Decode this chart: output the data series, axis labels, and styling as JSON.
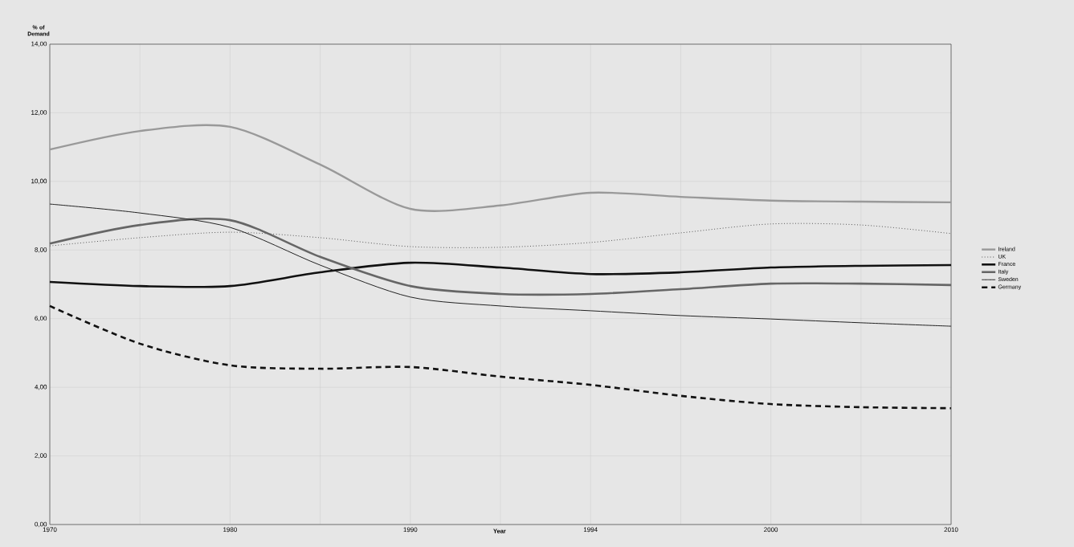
{
  "chart_data": {
    "type": "line",
    "xlabel": "Year",
    "ylabel": "% of Demand",
    "categories": [
      "1970",
      null,
      "1980",
      null,
      "1990",
      null,
      "1994",
      null,
      "2000",
      null,
      "2010"
    ],
    "ylim": [
      0,
      14
    ],
    "yticks": [
      {
        "value": 0,
        "label": "0,00"
      },
      {
        "value": 2,
        "label": "2,00"
      },
      {
        "value": 4,
        "label": "4,00"
      },
      {
        "value": 6,
        "label": "6,00"
      },
      {
        "value": 8,
        "label": "8,00"
      },
      {
        "value": 10,
        "label": "10,00"
      },
      {
        "value": 12,
        "label": "12,00"
      },
      {
        "value": 14,
        "label": "14,00"
      }
    ],
    "grid": true,
    "legend": "right",
    "series": [
      {
        "name": "Ireland",
        "color": "#999999",
        "line_style": "solid",
        "values": [
          10.93,
          11.47,
          11.59,
          10.49,
          9.2,
          9.3,
          9.67,
          9.55,
          9.44,
          9.41,
          9.39
        ]
      },
      {
        "name": "UK",
        "color": "#555555",
        "line_style": "dotted",
        "values": [
          8.12,
          8.36,
          8.52,
          8.36,
          8.1,
          8.08,
          8.22,
          8.5,
          8.76,
          8.73,
          8.48
        ]
      },
      {
        "name": "France",
        "color": "#111111",
        "line_style": "solid",
        "values": [
          7.07,
          6.95,
          6.95,
          7.35,
          7.63,
          7.49,
          7.3,
          7.35,
          7.49,
          7.54,
          7.56
        ]
      },
      {
        "name": "Italy",
        "color": "#666666",
        "line_style": "solid",
        "values": [
          8.19,
          8.73,
          8.87,
          7.8,
          6.95,
          6.72,
          6.72,
          6.86,
          7.02,
          7.02,
          6.98
        ]
      },
      {
        "name": "Sweden",
        "color": "#222222",
        "line_style": "solid",
        "values": [
          9.34,
          9.08,
          8.66,
          7.56,
          6.63,
          6.37,
          6.23,
          6.09,
          5.99,
          5.88,
          5.78
        ]
      },
      {
        "name": "Germany",
        "color": "#111111",
        "line_style": "dashed",
        "values": [
          6.37,
          5.27,
          4.64,
          4.54,
          4.59,
          4.31,
          4.07,
          3.75,
          3.51,
          3.42,
          3.39
        ]
      }
    ]
  }
}
